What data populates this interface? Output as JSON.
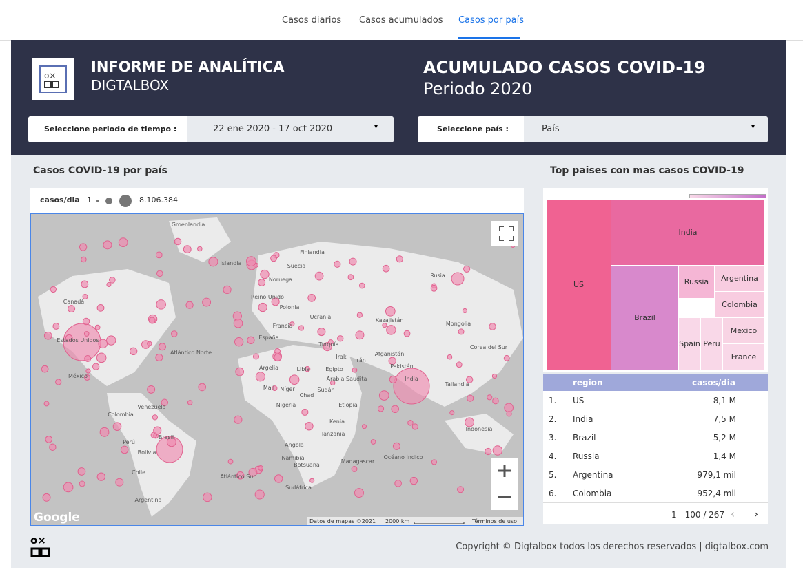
{
  "tabs": [
    "Casos diarios",
    "Casos acumulados",
    "Casos por país"
  ],
  "header": {
    "title": "INFORME DE ANALÍTICA",
    "subtitle": "DIGTALBOX",
    "report_title": "ACUMULADO CASOS COVID-19",
    "period": "Periodo 2020"
  },
  "filters": [
    {
      "label": "Seleccione periodo de tiempo :",
      "value": "22 ene 2020 - 17 oct 2020"
    },
    {
      "label": "Seleccione país :",
      "value": "País"
    }
  ],
  "map": {
    "title": "Casos COVID-19 por país",
    "legend_label": "casos/dia",
    "legend_min": "1",
    "legend_max": "8.106.384",
    "labels": [
      "Groenlandia",
      "Islandia",
      "Finlandia",
      "Suecia",
      "Noruega",
      "Rusia",
      "Canadá",
      "Reino Unido",
      "Polonia",
      "Ucrania",
      "Kazajistán",
      "Mongolia",
      "Estados Unidos",
      "Atlántico Norte",
      "España",
      "Francia",
      "Turquía",
      "Irak",
      "Irán",
      "Afganistán",
      "Pakistán",
      "India",
      "México",
      "Argelia",
      "Libia",
      "Egipto",
      "Arabia Saudita",
      "Mali",
      "Níger",
      "Chad",
      "Sudán",
      "Etiopía",
      "Nigeria",
      "Kenia",
      "Tanzania",
      "Angola",
      "Namibia",
      "Botsuana",
      "Madagascar",
      "Sudáfrica",
      "Venezuela",
      "Colombia",
      "Perú",
      "Brasil",
      "Bolivia",
      "Chile",
      "Argentina",
      "Atlántico Sur",
      "Océano Índico",
      "Tailandia",
      "Indonesia",
      "Corea del Sur"
    ],
    "google": "Google",
    "attribution": "Datos de mapas ©2021",
    "scale": "2000 km",
    "terms": "Términos de uso"
  },
  "treemap": {
    "title": "Top paises con mas casos COVID-19",
    "cells": [
      "US",
      "India",
      "Brazil",
      "Russia",
      "Argentina",
      "Colombia",
      "Mexico",
      "Spain",
      "Peru",
      "France"
    ]
  },
  "table": {
    "columns": [
      "region",
      "casos/dia"
    ],
    "rows": [
      [
        "1.",
        "US",
        "8,1 M"
      ],
      [
        "2.",
        "India",
        "7,5 M"
      ],
      [
        "3.",
        "Brazil",
        "5,2 M"
      ],
      [
        "4.",
        "Russia",
        "1,4 M"
      ],
      [
        "5.",
        "Argentina",
        "979,1 mil"
      ],
      [
        "6.",
        "Colombia",
        "952,4 mil"
      ]
    ],
    "pagination": "1 - 100 / 267"
  },
  "footer": {
    "copyright": "Copyright © Digtalbox todos los derechos reservados | digtalbox.com"
  }
}
